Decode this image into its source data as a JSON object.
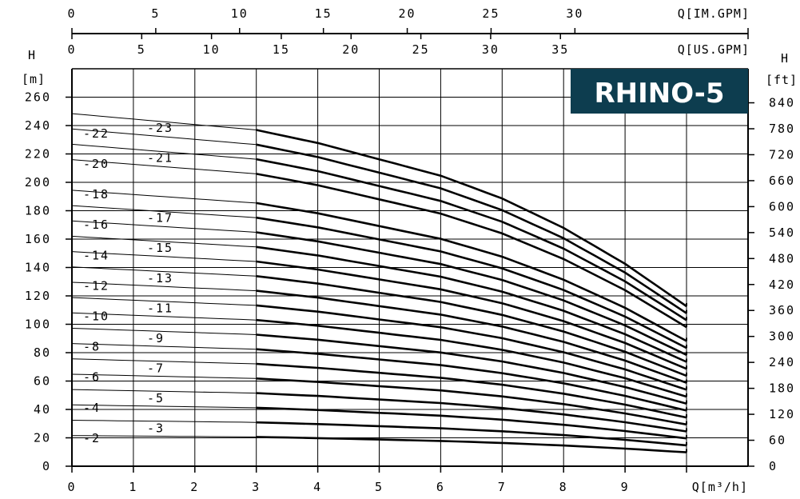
{
  "chart_data": {
    "type": "line",
    "title": "RHINO-5",
    "badge_color": "#0d3d4f",
    "line_color": "#000000",
    "grid": true,
    "xlabel": "Q[m³/h]",
    "ylabel_left": "H",
    "ylabel_left_unit": "[m]",
    "ylabel_right": "H",
    "ylabel_right_unit": "[ft]",
    "xlim": [
      0,
      11
    ],
    "ylim": [
      0,
      280
    ],
    "x_ticks": [
      "0",
      "1",
      "2",
      "3",
      "4",
      "5",
      "6",
      "7",
      "8",
      "9"
    ],
    "y_ticks_m": [
      "0",
      "20",
      "40",
      "60",
      "80",
      "100",
      "120",
      "140",
      "160",
      "180",
      "200",
      "220",
      "240",
      "260"
    ],
    "y_ticks_ft": [
      "0",
      "60",
      "120",
      "180",
      "240",
      "300",
      "360",
      "420",
      "480",
      "540",
      "600",
      "660",
      "720",
      "780",
      "840"
    ],
    "top_axis_im_gpm": {
      "label": "Q[IM.GPM]",
      "ticks": [
        "0",
        "5",
        "10",
        "15",
        "20",
        "25",
        "30"
      ]
    },
    "top_axis_us_gpm": {
      "label": "Q[US.GPM]",
      "ticks": [
        "0",
        "5",
        "10",
        "15",
        "20",
        "25",
        "30",
        "35"
      ]
    },
    "recommended_range": [
      3,
      10
    ],
    "per_stage_curve": {
      "q": [
        0,
        3,
        4,
        5,
        6,
        7,
        8,
        9,
        10
      ],
      "h": [
        10.8,
        10.3,
        9.9,
        9.4,
        8.9,
        8.2,
        7.3,
        6.2,
        4.9
      ]
    },
    "series": [
      {
        "name": "-2",
        "stages": 2
      },
      {
        "name": "-3",
        "stages": 3
      },
      {
        "name": "-4",
        "stages": 4
      },
      {
        "name": "-5",
        "stages": 5
      },
      {
        "name": "-6",
        "stages": 6
      },
      {
        "name": "-7",
        "stages": 7
      },
      {
        "name": "-8",
        "stages": 8
      },
      {
        "name": "-9",
        "stages": 9
      },
      {
        "name": "-10",
        "stages": 10
      },
      {
        "name": "-11",
        "stages": 11
      },
      {
        "name": "-12",
        "stages": 12
      },
      {
        "name": "-13",
        "stages": 13
      },
      {
        "name": "-14",
        "stages": 14
      },
      {
        "name": "-15",
        "stages": 15
      },
      {
        "name": "-16",
        "stages": 16
      },
      {
        "name": "-17",
        "stages": 17
      },
      {
        "name": "-18",
        "stages": 18
      },
      {
        "name": "-20",
        "stages": 20
      },
      {
        "name": "-21",
        "stages": 21
      },
      {
        "name": "-22",
        "stages": 22
      },
      {
        "name": "-23",
        "stages": 23
      }
    ]
  }
}
